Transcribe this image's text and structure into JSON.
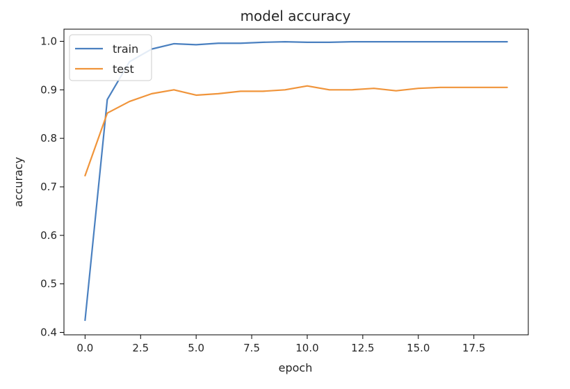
{
  "chart_data": {
    "type": "line",
    "title": "model accuracy",
    "xlabel": "epoch",
    "ylabel": "accuracy",
    "xlim": [
      -0.95,
      19.95
    ],
    "ylim": [
      0.395,
      1.025
    ],
    "xticks": [
      0,
      2.5,
      5,
      7.5,
      10,
      12.5,
      15,
      17.5
    ],
    "xtick_labels": [
      "0.0",
      "2.5",
      "5.0",
      "7.5",
      "10.0",
      "12.5",
      "15.0",
      "17.5"
    ],
    "yticks": [
      0.4,
      0.5,
      0.6,
      0.7,
      0.8,
      0.9,
      1.0
    ],
    "ytick_labels": [
      "0.4",
      "0.5",
      "0.6",
      "0.7",
      "0.8",
      "0.9",
      "1.0"
    ],
    "grid": false,
    "legend_position": "top-left",
    "x": [
      0,
      1,
      2,
      3,
      4,
      5,
      6,
      7,
      8,
      9,
      10,
      11,
      12,
      13,
      14,
      15,
      16,
      17,
      18,
      19
    ],
    "series": [
      {
        "name": "train",
        "color": "#4a80c0",
        "values": [
          0.425,
          0.88,
          0.958,
          0.984,
          0.995,
          0.993,
          0.996,
          0.996,
          0.998,
          0.999,
          0.998,
          0.998,
          0.999,
          0.999,
          0.999,
          0.999,
          0.999,
          0.999,
          0.999,
          0.999
        ]
      },
      {
        "name": "test",
        "color": "#f0943a",
        "values": [
          0.723,
          0.852,
          0.876,
          0.892,
          0.9,
          0.889,
          0.892,
          0.897,
          0.897,
          0.9,
          0.908,
          0.9,
          0.9,
          0.903,
          0.898,
          0.903,
          0.905,
          0.905,
          0.905,
          0.905
        ]
      }
    ]
  }
}
